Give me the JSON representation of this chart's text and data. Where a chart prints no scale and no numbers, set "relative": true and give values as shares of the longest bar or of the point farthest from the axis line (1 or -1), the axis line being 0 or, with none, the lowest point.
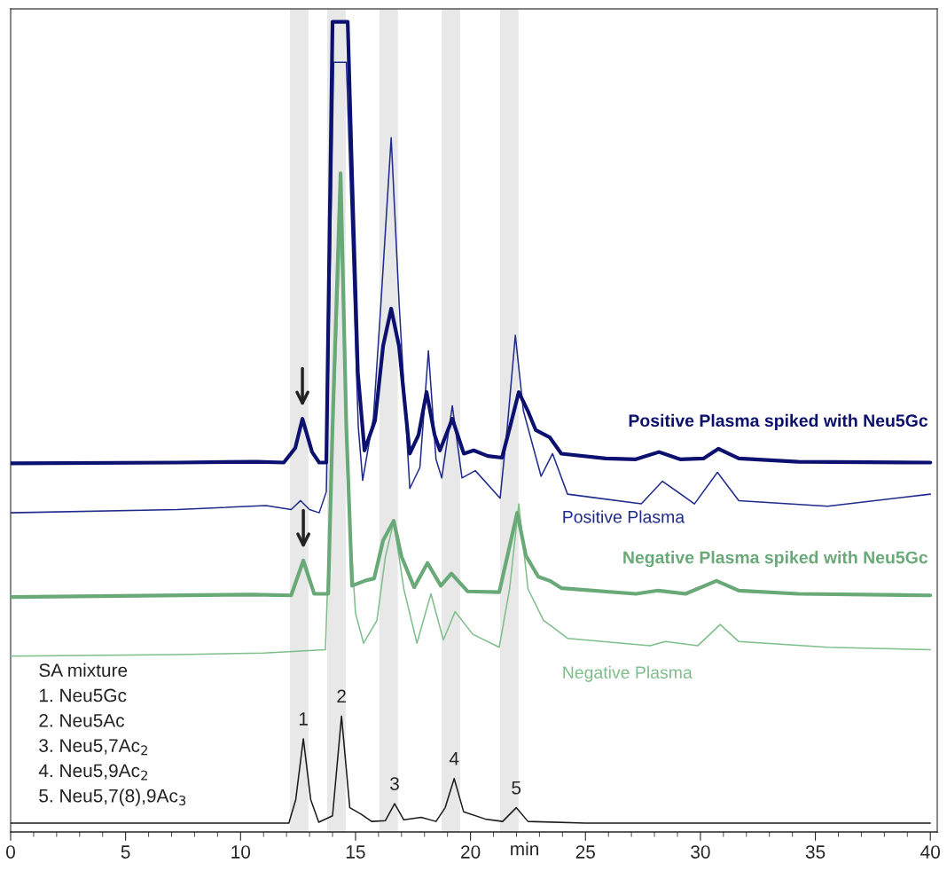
{
  "chart_data": {
    "type": "line",
    "relative": true,
    "xlabel": "min",
    "xlim": [
      0,
      40.3
    ],
    "xticks": [
      0,
      5,
      10,
      15,
      20,
      25,
      30,
      35,
      40
    ],
    "grid": false,
    "marker": "none",
    "line_style": "solid",
    "bands": [
      {
        "axis": "x",
        "from": 12.15,
        "to": 12.95,
        "color": "#e8e8e8"
      },
      {
        "axis": "x",
        "from": 13.77,
        "to": 14.57,
        "color": "#e8e8e8"
      },
      {
        "axis": "x",
        "from": 16.04,
        "to": 16.84,
        "color": "#e8e8e8"
      },
      {
        "axis": "x",
        "from": 18.75,
        "to": 19.55,
        "color": "#e8e8e8"
      },
      {
        "axis": "x",
        "from": 21.29,
        "to": 22.09,
        "color": "#e8e8e8"
      }
    ],
    "series": [
      {
        "name": "Positive Plasma spiked with Neu5Gc",
        "color": "#0c106e",
        "x": [
          0,
          7.25,
          10.72,
          11.88,
          12.38,
          12.69,
          13.11,
          13.42,
          13.73,
          13.9,
          14.0,
          14.66,
          14.85,
          15.1,
          15.39,
          15.85,
          16.2,
          16.55,
          16.89,
          17.36,
          17.74,
          18.09,
          18.44,
          18.67,
          19.21,
          19.71,
          20.14,
          20.75,
          21.37,
          21.72,
          22.1,
          22.49,
          22.84,
          23.45,
          23.95,
          25.88,
          27.19,
          28.2,
          29.12,
          30.13,
          30.78,
          31.67,
          34.25,
          40
        ],
        "values": [
          0.455,
          0.456,
          0.457,
          0.456,
          0.474,
          0.51,
          0.469,
          0.456,
          0.456,
          0.8,
          1.0,
          1.0,
          0.808,
          0.567,
          0.471,
          0.508,
          0.6,
          0.646,
          0.6,
          0.467,
          0.49,
          0.543,
          0.49,
          0.471,
          0.51,
          0.467,
          0.471,
          0.464,
          0.462,
          0.5,
          0.543,
          0.52,
          0.496,
          0.487,
          0.467,
          0.461,
          0.46,
          0.469,
          0.46,
          0.461,
          0.473,
          0.461,
          0.457,
          0.456
        ]
      },
      {
        "name": "Positive Plasma",
        "color": "#1f2a8a",
        "x": [
          0,
          7.25,
          11.11,
          12.2,
          12.61,
          13.0,
          13.42,
          13.73,
          14.05,
          14.6,
          15.12,
          15.31,
          15.78,
          16.1,
          16.55,
          16.9,
          17.36,
          17.8,
          18.17,
          18.5,
          18.75,
          19.21,
          19.63,
          20.21,
          21.29,
          21.6,
          21.95,
          22.3,
          23.07,
          23.57,
          24.22,
          27.43,
          28.35,
          29.74,
          30.74,
          31.67,
          35.53,
          40
        ],
        "values": [
          0.394,
          0.398,
          0.403,
          0.398,
          0.409,
          0.398,
          0.394,
          0.42,
          0.95,
          0.95,
          0.5,
          0.434,
          0.512,
          0.65,
          0.857,
          0.65,
          0.424,
          0.45,
          0.594,
          0.46,
          0.437,
          0.526,
          0.437,
          0.446,
          0.412,
          0.5,
          0.613,
          0.52,
          0.439,
          0.467,
          0.417,
          0.405,
          0.433,
          0.405,
          0.444,
          0.409,
          0.402,
          0.417
        ]
      },
      {
        "name": "Negative Plasma spiked with Neu5Gc",
        "color": "#68a977",
        "x": [
          0,
          10.5,
          12.2,
          12.73,
          13.2,
          13.81,
          14.0,
          14.35,
          14.6,
          14.85,
          15.4,
          15.81,
          16.2,
          16.66,
          17.0,
          17.55,
          18.13,
          18.71,
          19.17,
          19.87,
          21.25,
          21.6,
          22.03,
          22.41,
          22.95,
          23.45,
          23.95,
          27.19,
          28.16,
          29.35,
          30.7,
          31.67,
          34.25,
          40
        ],
        "values": [
          0.29,
          0.293,
          0.292,
          0.335,
          0.294,
          0.294,
          0.5,
          0.813,
          0.5,
          0.304,
          0.31,
          0.313,
          0.36,
          0.384,
          0.34,
          0.302,
          0.332,
          0.304,
          0.319,
          0.297,
          0.296,
          0.34,
          0.394,
          0.341,
          0.315,
          0.31,
          0.301,
          0.294,
          0.298,
          0.294,
          0.31,
          0.298,
          0.294,
          0.292
        ]
      },
      {
        "name": "Negative Plasma",
        "color": "#7fbe8b",
        "x": [
          0,
          7.25,
          11.0,
          13.69,
          13.9,
          14.35,
          14.7,
          15.0,
          15.35,
          15.93,
          16.3,
          16.66,
          17.1,
          17.67,
          18.28,
          18.82,
          19.33,
          20.1,
          21.25,
          21.7,
          22.1,
          22.5,
          23.18,
          23.57,
          24.22,
          27.81,
          28.47,
          29.89,
          30.86,
          31.67,
          35.53,
          40
        ],
        "values": [
          0.217,
          0.219,
          0.221,
          0.225,
          0.4,
          0.75,
          0.4,
          0.27,
          0.233,
          0.261,
          0.34,
          0.383,
          0.3,
          0.233,
          0.294,
          0.237,
          0.272,
          0.244,
          0.228,
          0.3,
          0.405,
          0.3,
          0.261,
          0.253,
          0.239,
          0.23,
          0.235,
          0.23,
          0.256,
          0.235,
          0.228,
          0.225
        ]
      },
      {
        "color": "#1a1a1a",
        "x": [
          0,
          12.1,
          12.4,
          12.73,
          13.05,
          13.4,
          14.0,
          14.39,
          14.75,
          15.24,
          15.7,
          16.3,
          16.7,
          17.1,
          17.86,
          18.5,
          18.9,
          19.29,
          19.7,
          20.64,
          21.4,
          21.99,
          22.5,
          25,
          40
        ],
        "values": [
          0.011,
          0.011,
          0.04,
          0.115,
          0.04,
          0.012,
          0.02,
          0.143,
          0.03,
          0.022,
          0.013,
          0.014,
          0.035,
          0.015,
          0.018,
          0.013,
          0.03,
          0.066,
          0.025,
          0.016,
          0.013,
          0.03,
          0.013,
          0.011,
          0.011
        ]
      }
    ],
    "annotations": [
      "SA mixture",
      "1. Neu5Gc",
      "2. Neu5Ac",
      "3. Neu5,7Ac$_{2}$",
      "4. Neu5,9Ac$_{2}$",
      "5. Neu5,7(8),9Ac$_{3}$",
      {
        "text": "1",
        "x": 12.73,
        "y": 0.115
      },
      {
        "text": "2",
        "x": 14.39,
        "y": 0.143
      },
      {
        "text": "3",
        "x": 16.7,
        "y": 0.035
      },
      {
        "text": "4",
        "x": 19.29,
        "y": 0.066
      },
      {
        "text": "5",
        "x": 21.99,
        "y": 0.03
      }
    ]
  }
}
